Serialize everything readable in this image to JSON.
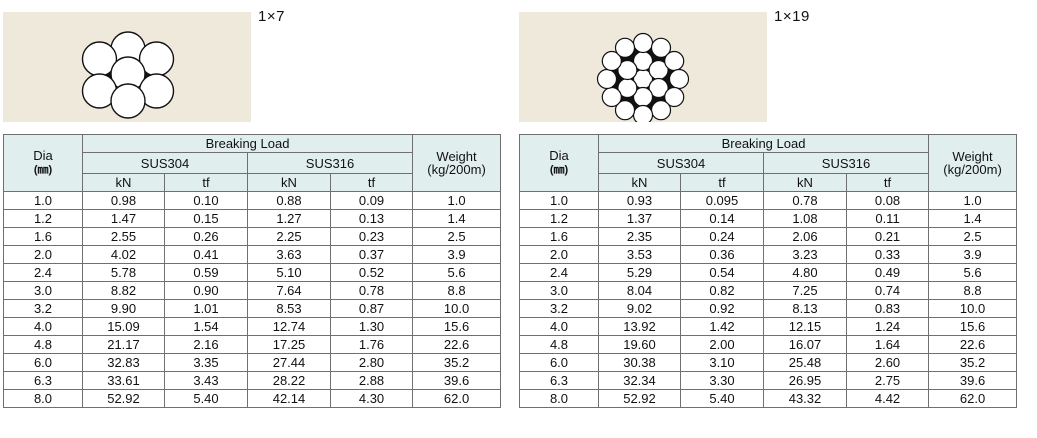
{
  "panels": [
    {
      "spec": "1×7",
      "header": {
        "dia": "Dia",
        "dia_unit": "(㎜)",
        "breaking_load": "Breaking Load",
        "grade_a": "SUS304",
        "grade_b": "SUS316",
        "kn": "kN",
        "tf": "tf",
        "weight": "Weight",
        "weight_unit": "(kg/200m)"
      },
      "rows": [
        [
          "1.0",
          "0.98",
          "0.10",
          "0.88",
          "0.09",
          "1.0"
        ],
        [
          "1.2",
          "1.47",
          "0.15",
          "1.27",
          "0.13",
          "1.4"
        ],
        [
          "1.6",
          "2.55",
          "0.26",
          "2.25",
          "0.23",
          "2.5"
        ],
        [
          "2.0",
          "4.02",
          "0.41",
          "3.63",
          "0.37",
          "3.9"
        ],
        [
          "2.4",
          "5.78",
          "0.59",
          "5.10",
          "0.52",
          "5.6"
        ],
        [
          "3.0",
          "8.82",
          "0.90",
          "7.64",
          "0.78",
          "8.8"
        ],
        [
          "3.2",
          "9.90",
          "1.01",
          "8.53",
          "0.87",
          "10.0"
        ],
        [
          "4.0",
          "15.09",
          "1.54",
          "12.74",
          "1.30",
          "15.6"
        ],
        [
          "4.8",
          "21.17",
          "2.16",
          "17.25",
          "1.76",
          "22.6"
        ],
        [
          "6.0",
          "32.83",
          "3.35",
          "27.44",
          "2.80",
          "35.2"
        ],
        [
          "6.3",
          "33.61",
          "3.43",
          "28.22",
          "2.88",
          "39.6"
        ],
        [
          "8.0",
          "52.92",
          "5.40",
          "42.14",
          "4.30",
          "62.0"
        ]
      ]
    },
    {
      "spec": "1×19",
      "header": {
        "dia": "Dia",
        "dia_unit": "(㎜)",
        "breaking_load": "Breaking Load",
        "grade_a": "SUS304",
        "grade_b": "SUS316",
        "kn": "kN",
        "tf": "tf",
        "weight": "Weight",
        "weight_unit": "(kg/200m)"
      },
      "rows": [
        [
          "1.0",
          "0.93",
          "0.095",
          "0.78",
          "0.08",
          "1.0"
        ],
        [
          "1.2",
          "1.37",
          "0.14",
          "1.08",
          "0.11",
          "1.4"
        ],
        [
          "1.6",
          "2.35",
          "0.24",
          "2.06",
          "0.21",
          "2.5"
        ],
        [
          "2.0",
          "3.53",
          "0.36",
          "3.23",
          "0.33",
          "3.9"
        ],
        [
          "2.4",
          "5.29",
          "0.54",
          "4.80",
          "0.49",
          "5.6"
        ],
        [
          "3.0",
          "8.04",
          "0.82",
          "7.25",
          "0.74",
          "8.8"
        ],
        [
          "3.2",
          "9.02",
          "0.92",
          "8.13",
          "0.83",
          "10.0"
        ],
        [
          "4.0",
          "13.92",
          "1.42",
          "12.15",
          "1.24",
          "15.6"
        ],
        [
          "4.8",
          "19.60",
          "2.00",
          "16.07",
          "1.64",
          "22.6"
        ],
        [
          "6.0",
          "30.38",
          "3.10",
          "25.48",
          "2.60",
          "35.2"
        ],
        [
          "6.3",
          "32.34",
          "3.30",
          "26.95",
          "2.75",
          "39.6"
        ],
        [
          "8.0",
          "52.92",
          "5.40",
          "43.32",
          "4.42",
          "62.0"
        ]
      ]
    }
  ]
}
